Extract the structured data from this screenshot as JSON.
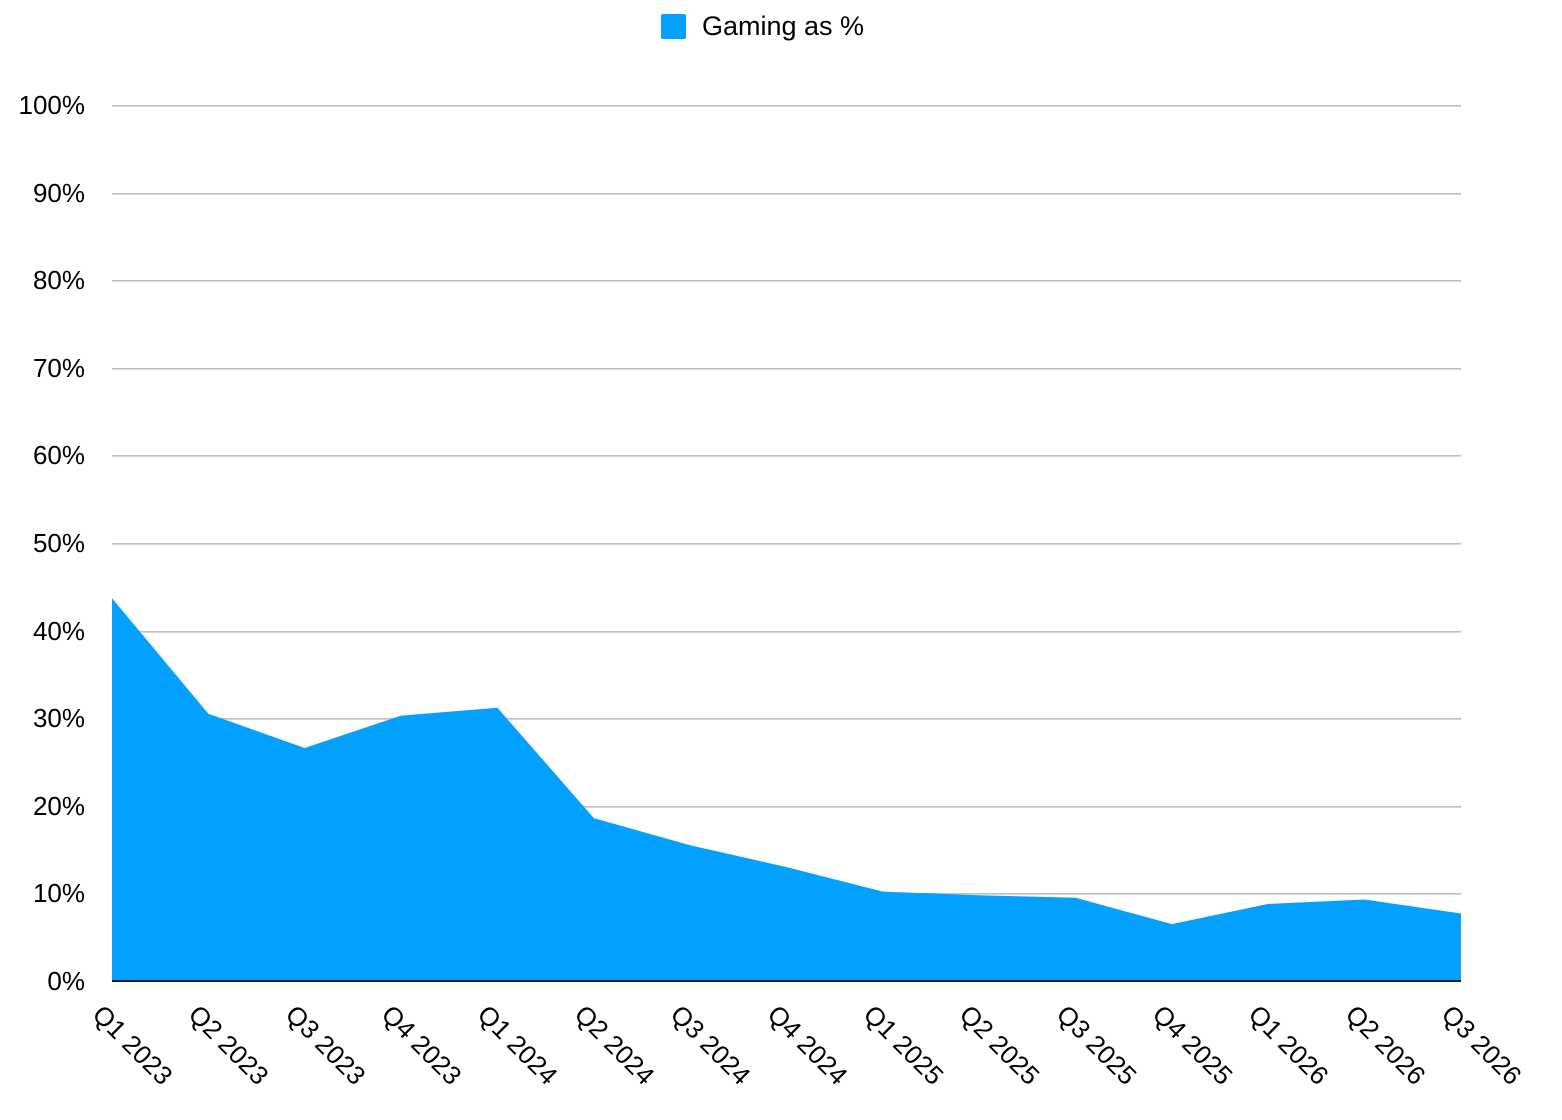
{
  "legend": {
    "label": "Gaming as %",
    "swatch_icon": "legend-color-swatch"
  },
  "colors": {
    "area": "#02A0FF",
    "gridline": "#C4C4C4",
    "axis_line": "#1C1C1C",
    "text": "#000000",
    "background": "#FFFFFF"
  },
  "chart_data": {
    "type": "area",
    "title": "",
    "xlabel": "",
    "ylabel": "",
    "ylim": [
      0,
      100
    ],
    "grid": true,
    "legend_position": "top-center",
    "y_ticks": [
      "100%",
      "90%",
      "80%",
      "70%",
      "60%",
      "50%",
      "40%",
      "30%",
      "20%",
      "10%",
      "0%"
    ],
    "categories": [
      "Q1 2023",
      "Q2 2023",
      "Q3 2023",
      "Q4 2023",
      "Q1 2024",
      "Q2 2024",
      "Q3 2024",
      "Q4 2024",
      "Q1 2025",
      "Q2 2025",
      "Q3 2025",
      "Q4 2025",
      "Q1 2026",
      "Q2 2026",
      "Q3 2026"
    ],
    "series": [
      {
        "name": "Gaming as %",
        "color": "#02A0FF",
        "values": [
          43.7,
          30.5,
          26.6,
          30.3,
          31.2,
          18.6,
          15.5,
          13.0,
          10.2,
          9.8,
          9.5,
          6.5,
          8.8,
          9.3,
          7.7
        ]
      }
    ]
  }
}
